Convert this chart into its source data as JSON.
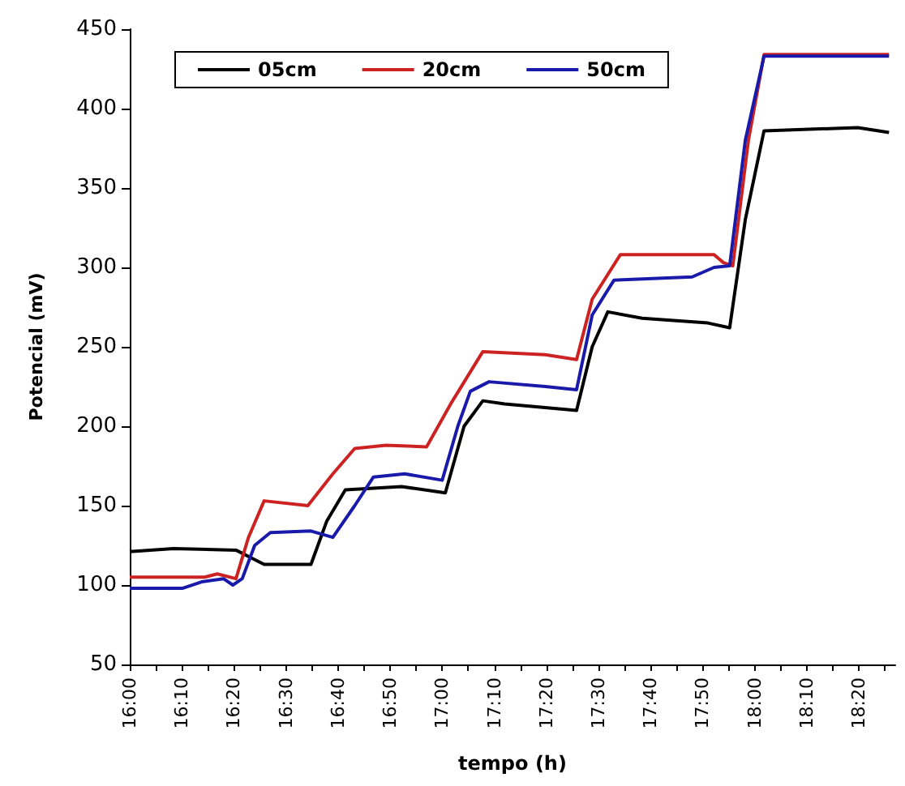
{
  "chart_data": {
    "type": "line",
    "xlabel": "tempo (h)",
    "ylabel": "Potencial (mV)",
    "xlim": [
      16,
      18.45
    ],
    "ylim": [
      50,
      450
    ],
    "yticks": [
      50,
      100,
      150,
      200,
      250,
      300,
      350,
      400,
      450
    ],
    "xticks": [
      {
        "value": 16,
        "label": "16:00"
      },
      {
        "value": 16.0833,
        "label": null
      },
      {
        "value": 16.1667,
        "label": "16:10"
      },
      {
        "value": 16.25,
        "label": null
      },
      {
        "value": 16.3333,
        "label": "16:20"
      },
      {
        "value": 16.4167,
        "label": null
      },
      {
        "value": 16.5,
        "label": "16:30"
      },
      {
        "value": 16.5833,
        "label": null
      },
      {
        "value": 16.6667,
        "label": "16:40"
      },
      {
        "value": 16.75,
        "label": null
      },
      {
        "value": 16.8333,
        "label": "16:50"
      },
      {
        "value": 16.9167,
        "label": null
      },
      {
        "value": 17,
        "label": "17:00"
      },
      {
        "value": 17.0833,
        "label": null
      },
      {
        "value": 17.1667,
        "label": "17:10"
      },
      {
        "value": 17.25,
        "label": null
      },
      {
        "value": 17.3333,
        "label": "17:20"
      },
      {
        "value": 17.4167,
        "label": null
      },
      {
        "value": 17.5,
        "label": "17:30"
      },
      {
        "value": 17.5833,
        "label": null
      },
      {
        "value": 17.6667,
        "label": "17:40"
      },
      {
        "value": 17.75,
        "label": null
      },
      {
        "value": 17.8333,
        "label": "17:50"
      },
      {
        "value": 17.9167,
        "label": null
      },
      {
        "value": 18,
        "label": "18:00"
      },
      {
        "value": 18.0833,
        "label": null
      },
      {
        "value": 18.1667,
        "label": "18:10"
      },
      {
        "value": 18.25,
        "label": null
      },
      {
        "value": 18.3333,
        "label": "18:20"
      },
      {
        "value": 18.4167,
        "label": null
      }
    ],
    "grid": false,
    "legend": "top left",
    "marker": "none",
    "line_style": "solid",
    "series": [
      {
        "name": "05cm",
        "color": "#000000",
        "x": [
          16.0,
          16.14,
          16.34,
          16.38,
          16.43,
          16.58,
          16.63,
          16.69,
          16.87,
          17.01,
          17.07,
          17.13,
          17.2,
          17.43,
          17.48,
          17.53,
          17.64,
          17.85,
          17.92,
          17.97,
          18.03,
          18.33,
          18.43
        ],
        "values": [
          121,
          123,
          122,
          118,
          113,
          113,
          140,
          160,
          162,
          158,
          200,
          216,
          214,
          210,
          250,
          272,
          268,
          265,
          262,
          330,
          386,
          388,
          385
        ]
      },
      {
        "name": "20cm",
        "color": "#cc2222",
        "x": [
          16.0,
          16.24,
          16.28,
          16.34,
          16.38,
          16.43,
          16.57,
          16.65,
          16.72,
          16.82,
          16.95,
          17.03,
          17.13,
          17.33,
          17.43,
          17.48,
          17.57,
          17.87,
          17.9,
          17.93,
          17.98,
          18.03,
          18.43
        ],
        "values": [
          105,
          105,
          107,
          104,
          130,
          153,
          150,
          170,
          186,
          188,
          187,
          215,
          247,
          245,
          242,
          280,
          308,
          308,
          303,
          301,
          380,
          434,
          434
        ]
      },
      {
        "name": "50cm",
        "color": "#1a1aaa",
        "x": [
          16.0,
          16.17,
          16.23,
          16.3,
          16.33,
          16.36,
          16.4,
          16.45,
          16.58,
          16.65,
          16.72,
          16.78,
          16.88,
          17.0,
          17.05,
          17.09,
          17.15,
          17.33,
          17.43,
          17.48,
          17.55,
          17.8,
          17.87,
          17.92,
          17.97,
          18.03,
          18.43
        ],
        "values": [
          98,
          98,
          102,
          104,
          100,
          104,
          125,
          133,
          134,
          130,
          150,
          168,
          170,
          166,
          200,
          222,
          228,
          225,
          223,
          270,
          292,
          294,
          300,
          301,
          380,
          433,
          433
        ]
      }
    ]
  }
}
